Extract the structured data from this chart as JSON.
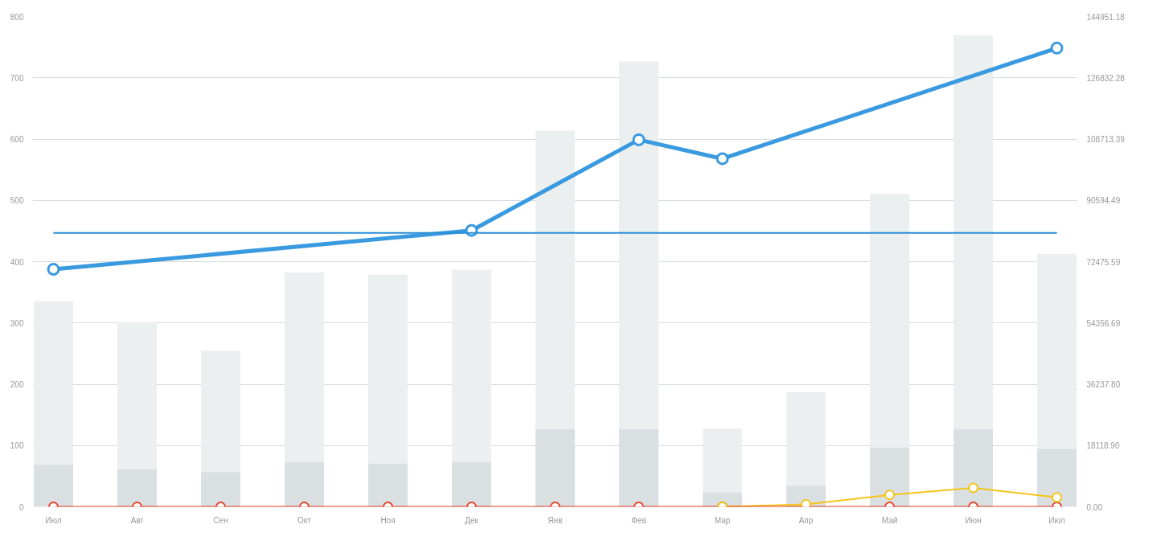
{
  "chart_data": {
    "type": "bar",
    "stacked": true,
    "categories": [
      "Июл",
      "Авг",
      "Сен",
      "Окт",
      "Ноя",
      "Дек",
      "Янв",
      "Фев",
      "Мар",
      "Апр",
      "Май",
      "Июн",
      "Июл"
    ],
    "series": [
      {
        "color": "#dadfe2",
        "values": [
          69,
          62,
          57,
          73,
          71,
          73,
          127,
          127,
          24,
          35,
          97,
          127,
          95
        ]
      },
      {
        "color": "#ebeff0",
        "values": [
          266,
          238,
          197,
          309,
          307,
          313,
          486,
          599,
          103,
          151,
          413,
          642,
          317
        ]
      },
      {
        "type": "line",
        "axis": "y2",
        "color": "#3a9ae0",
        "values": [
          70200,
          null,
          null,
          null,
          null,
          81700,
          null,
          108500,
          102900,
          null,
          null,
          null,
          135600
        ]
      },
      {
        "type": "line",
        "axis": "y2",
        "color": "#f5c518",
        "values": [
          null,
          null,
          null,
          null,
          null,
          null,
          null,
          null,
          0,
          700,
          3500,
          5600,
          2800
        ]
      },
      {
        "type": "line",
        "axis": "y2",
        "color": "#e8432a",
        "values": [
          0,
          0,
          0,
          0,
          0,
          0,
          0,
          0,
          0,
          0,
          0,
          0,
          0
        ]
      }
    ],
    "ylim": [
      0,
      800
    ],
    "yticks": [
      0,
      100,
      200,
      300,
      400,
      500,
      600,
      700,
      800
    ],
    "y2lim": [
      0,
      144951.18
    ],
    "y2ticks": [
      {
        "value": 0,
        "label": "0.00"
      },
      {
        "value": 18118.9,
        "label": "18118.90"
      },
      {
        "value": 36237.8,
        "label": "36237.80"
      },
      {
        "value": 54356.69,
        "label": "54356.69"
      },
      {
        "value": 72475.59,
        "label": "72475.59"
      },
      {
        "value": 90594.49,
        "label": "90594.49"
      },
      {
        "value": 108713.39,
        "label": "108713.39"
      },
      {
        "value": 126832.28,
        "label": "126832.28"
      },
      {
        "value": 144951.18,
        "label": "144951.18"
      }
    ],
    "ref_lines": [
      {
        "axis": "y2",
        "value": 81000,
        "color": "#2b8fd8"
      }
    ],
    "grid": "y",
    "marker": "circle"
  }
}
